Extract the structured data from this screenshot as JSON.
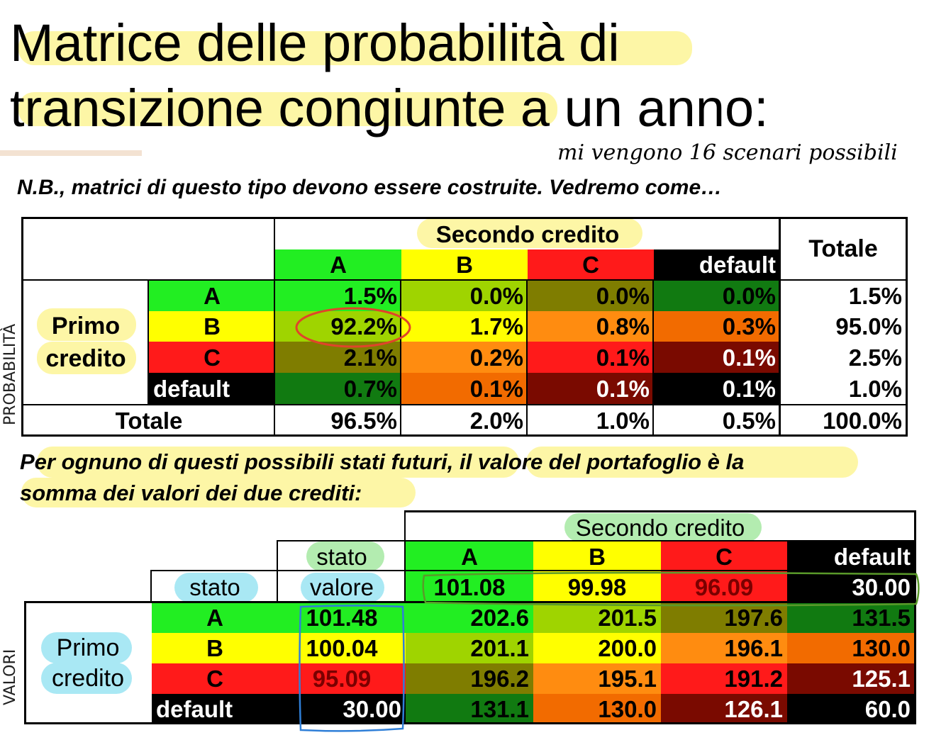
{
  "title": {
    "line1": "Matrice delle probabilità di",
    "line2a": "transizione congiunte",
    "line2b": " a un anno:"
  },
  "handwritten": {
    "note": "mi vengono 16 scenari possibili",
    "side1": "PROBABILITÀ",
    "side2": "VALORI"
  },
  "nb": "N.B., matrici di questo tipo devono essere costruite. Vedremo come…",
  "table1": {
    "secondo": "Secondo credito",
    "totale": "Totale",
    "primo1": "Primo",
    "primo2": "credito",
    "cols": [
      "A",
      "B",
      "C",
      "default"
    ],
    "rows": [
      {
        "label": "A",
        "vals": [
          "1.5%",
          "0.0%",
          "0.0%",
          "0.0%"
        ],
        "tot": "1.5%"
      },
      {
        "label": "B",
        "vals": [
          "92.2%",
          "1.7%",
          "0.8%",
          "0.3%"
        ],
        "tot": "95.0%"
      },
      {
        "label": "C",
        "vals": [
          "2.1%",
          "0.2%",
          "0.1%",
          "0.1%"
        ],
        "tot": "2.5%"
      },
      {
        "label": "default",
        "vals": [
          "0.7%",
          "0.1%",
          "0.1%",
          "0.1%"
        ],
        "tot": "1.0%"
      }
    ],
    "total_label": "Totale",
    "total_vals": [
      "96.5%",
      "2.0%",
      "1.0%",
      "0.5%",
      "100.0%"
    ]
  },
  "para": {
    "line1": "Per ognuno di questi possibili stati futuri, il valore del portafoglio è la",
    "line2": "somma dei valori dei due crediti:"
  },
  "table2": {
    "secondo": "Secondo credito",
    "stato_top": "stato",
    "stato": "stato",
    "valore": "valore",
    "primo1": "Primo",
    "primo2": "credito",
    "cols": [
      "A",
      "B",
      "C",
      "default"
    ],
    "col_vals": [
      "101.08",
      "99.98",
      "96.09",
      "30.00"
    ],
    "rows": [
      {
        "label": "A",
        "val": "101.48",
        "vals": [
          "202.6",
          "201.5",
          "197.6",
          "131.5"
        ]
      },
      {
        "label": "B",
        "val": "100.04",
        "vals": [
          "201.1",
          "200.0",
          "196.1",
          "130.0"
        ]
      },
      {
        "label": "C",
        "val": "95.09",
        "vals": [
          "196.2",
          "195.1",
          "191.2",
          "125.1"
        ]
      },
      {
        "label": "default",
        "val": "30.00",
        "vals": [
          "131.1",
          "130.0",
          "126.1",
          "60.0"
        ]
      }
    ]
  },
  "colors": {
    "green": "#22ee22",
    "yellow": "#ffff00",
    "red": "#ff1a1a",
    "black": "#000000",
    "highlight_yellow": "#fdf6a6",
    "highlight_blue": "#a9e8f4",
    "highlight_green": "#b3ecb0",
    "annotation_red": "#e0442a",
    "annotation_blue": "#2f7fd8",
    "annotation_green": "#5a9a2a"
  }
}
